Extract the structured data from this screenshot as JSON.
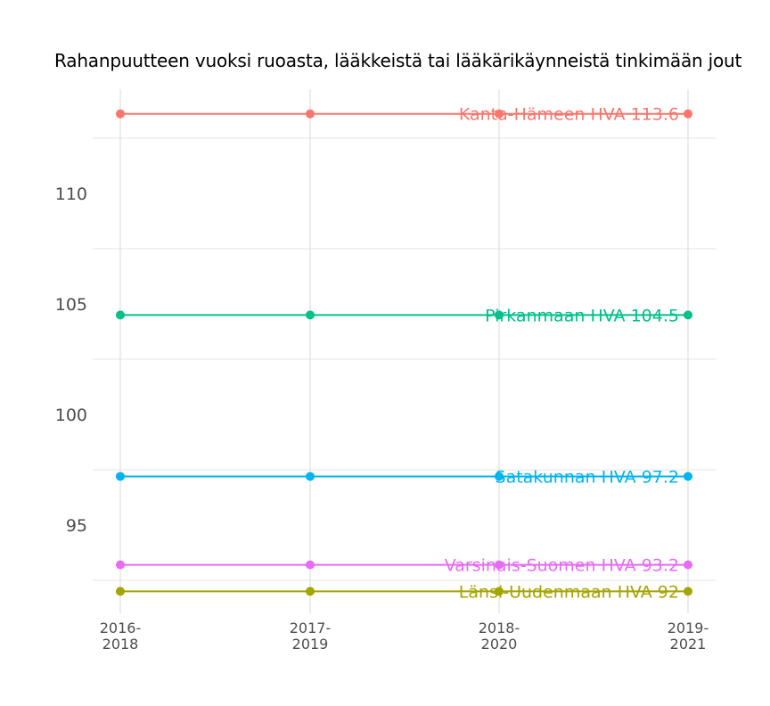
{
  "chart_data": {
    "type": "line",
    "title": "Rahanpuutteen vuoksi ruoasta, lääkkeistä tai lääkärikäynneistä tinkimään jout",
    "xlabel": "",
    "ylabel": "",
    "categories": [
      "2016-\n2018",
      "2017-\n2019",
      "2018-\n2020",
      "2019-\n2021"
    ],
    "category_lines": [
      [
        "2016-",
        "2018"
      ],
      [
        "2017-",
        "2019"
      ],
      [
        "2018-",
        "2020"
      ],
      [
        "2019-",
        "2021"
      ]
    ],
    "y_ticks": [
      95,
      100,
      105,
      110
    ],
    "ylim": [
      91.3,
      114.7
    ],
    "grid": true,
    "legend": "none (direct labels at last point)",
    "series": [
      {
        "name": "Kanta-Hämeen HVA",
        "label": "Kanta-Hämeen HVA 113.6",
        "color": "#F8766D",
        "values": [
          113.6,
          113.6,
          113.6,
          113.6
        ]
      },
      {
        "name": "Pirkanmaan HVA",
        "label": "Pirkanmaan HVA 104.5",
        "color": "#00C08B",
        "values": [
          104.5,
          104.5,
          104.5,
          104.5
        ]
      },
      {
        "name": "Satakunnan HVA",
        "label": "Satakunnan HVA 97.2",
        "color": "#00B4EF",
        "values": [
          97.2,
          97.2,
          97.2,
          97.2
        ]
      },
      {
        "name": "Varsinais-Suomen HVA",
        "label": "Varsinais-Suomen HVA 93.2",
        "color": "#E76BF3",
        "values": [
          93.2,
          93.2,
          93.2,
          93.2
        ]
      },
      {
        "name": "Länsi-Uudenmaan HVA",
        "label": "Länsi-Uudenmaan HVA 92",
        "color": "#A3A500",
        "values": [
          92,
          92,
          92,
          92
        ]
      }
    ]
  }
}
